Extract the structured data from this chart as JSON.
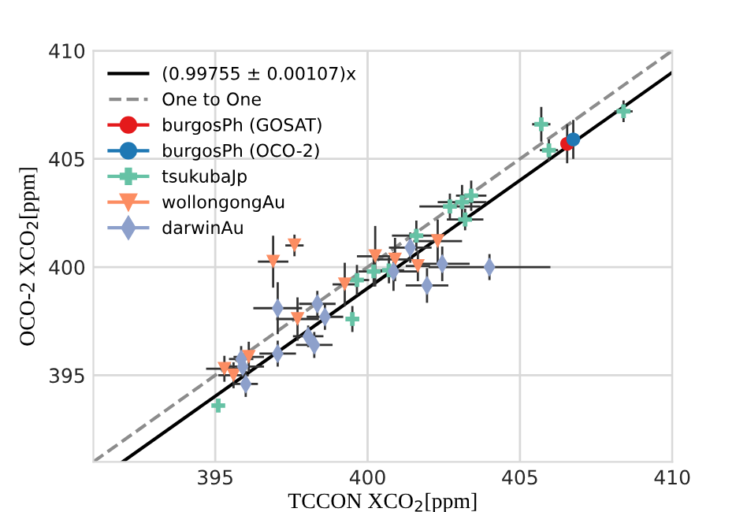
{
  "chart_data": {
    "type": "scatter",
    "xlabel": "TCCON XCO$_{2}$[ppm]",
    "ylabel": "OCO-2 XCO$_{2}$[ppm]",
    "xlim": [
      391,
      410
    ],
    "ylim": [
      391,
      410
    ],
    "xticks": [
      395,
      400,
      405,
      410
    ],
    "yticks": [
      395,
      400,
      405,
      410
    ],
    "grid": true,
    "legend": "top left",
    "series": [
      {
        "name": "(0.99755 ± 0.00107)x",
        "type": "line",
        "color": "#000000",
        "line_style": "solid",
        "marker": "none",
        "x": [
          391.96,
          410
        ],
        "values": [
          391.0,
          409.0
        ]
      },
      {
        "name": "One to One",
        "type": "line",
        "color": "#8c8c8c",
        "line_style": "dashed",
        "marker": "none",
        "x": [
          391,
          410
        ],
        "values": [
          391,
          410
        ]
      },
      {
        "name": "burgosPh (GOSAT)",
        "color": "#e41a1c",
        "marker": "circle",
        "x": [
          406.55
        ],
        "values": [
          405.7
        ],
        "errors": [
          0.9
        ]
      },
      {
        "name": "burgosPh (OCO-2)",
        "color": "#1f78b4",
        "marker": "circle",
        "x": [
          406.75
        ],
        "values": [
          405.9
        ],
        "errors": [
          0.9
        ],
        "xerrors": [
          0.2
        ]
      },
      {
        "name": "tsukubaJp",
        "color": "#66c2a5",
        "marker": "cross",
        "x": [
          405.7,
          405.95,
          408.4,
          402.7,
          403.1,
          403.4,
          403.2,
          401.6,
          400.2,
          400.7,
          399.65,
          399.5,
          395.1
        ],
        "values": [
          406.6,
          405.4,
          407.2,
          402.8,
          403.0,
          403.3,
          402.2,
          401.45,
          399.8,
          399.85,
          399.4,
          397.6,
          393.6
        ],
        "errors": [
          0.8,
          0.5,
          0.5,
          0.6,
          0.8,
          0.7,
          0.5,
          0.7,
          0.7,
          0.6,
          0.7,
          0.6,
          0.3
        ],
        "xerrors": [
          0.3,
          0.3,
          0.3,
          1.0,
          0.8,
          0.5,
          0.6,
          0.8,
          0.5,
          0.5,
          0.4,
          0.2,
          0.2
        ]
      },
      {
        "name": "wollongongAu",
        "color": "#fc8d62",
        "marker": "triangle",
        "x": [
          396.9,
          397.6,
          397.7,
          395.3,
          395.6,
          396.1,
          399.25,
          400.25,
          400.9,
          401.65,
          402.3
        ],
        "values": [
          400.25,
          401.0,
          397.6,
          395.3,
          395.0,
          395.85,
          399.2,
          400.5,
          400.35,
          400.05,
          401.2
        ],
        "errors": [
          1.2,
          0.5,
          1.0,
          0.6,
          0.6,
          0.7,
          1.0,
          1.4,
          1.0,
          0.7,
          1.0
        ],
        "xerrors": [
          0.5,
          0.3,
          0.7,
          0.6,
          0.5,
          0.5,
          0.4,
          0.6,
          0.6,
          0.4,
          0.8
        ]
      },
      {
        "name": "darwinAu",
        "color": "#8da0cb",
        "marker": "diamond",
        "x": [
          397.05,
          397.05,
          398.35,
          398.6,
          398.05,
          398.25,
          395.85,
          395.9,
          396.0,
          401.4,
          400.85,
          402.45,
          401.95,
          404.0
        ],
        "values": [
          398.1,
          396.0,
          398.3,
          397.7,
          396.8,
          396.4,
          395.75,
          395.4,
          394.6,
          400.9,
          399.8,
          400.15,
          399.15,
          400.0
        ],
        "errors": [
          1.2,
          0.6,
          0.6,
          0.6,
          0.5,
          0.6,
          0.6,
          0.5,
          0.6,
          0.7,
          0.9,
          0.8,
          0.8,
          0.6
        ],
        "xerrors": [
          0.8,
          0.6,
          0.6,
          0.6,
          0.5,
          0.6,
          0.4,
          0.7,
          0.4,
          0.7,
          0.8,
          0.9,
          0.7,
          2.0
        ]
      }
    ]
  }
}
